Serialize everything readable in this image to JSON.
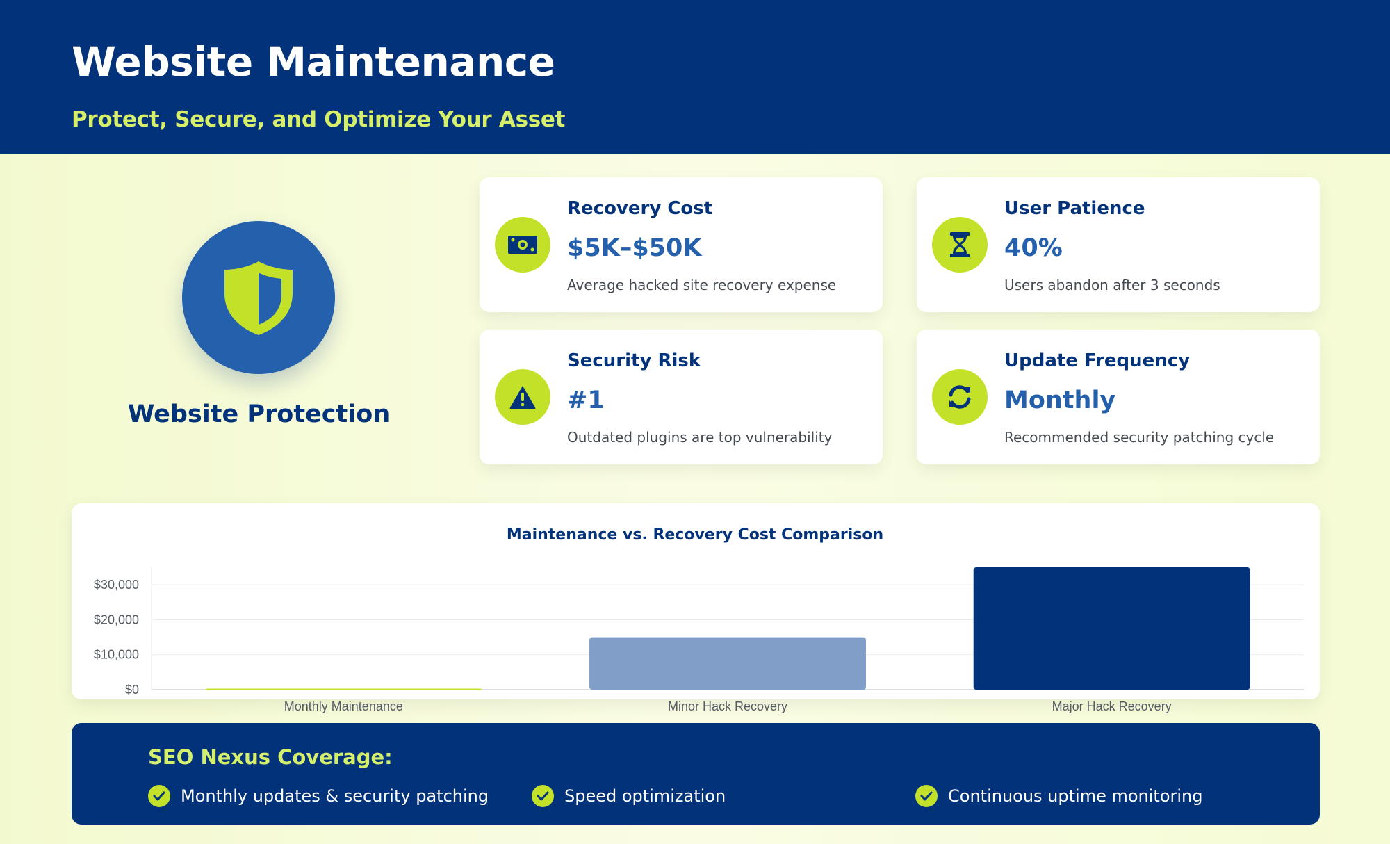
{
  "header": {
    "title": "Website Maintenance",
    "subtitle": "Protect, Secure, and Optimize Your Asset"
  },
  "hero": {
    "icon": "shield-icon",
    "title": "Website Protection"
  },
  "stats": [
    {
      "icon": "money-icon",
      "label": "Recovery Cost",
      "value": "$5K–$50K",
      "description": "Average hacked site recovery expense"
    },
    {
      "icon": "hourglass-icon",
      "label": "User Patience",
      "value": "40%",
      "description": "Users abandon after 3 seconds"
    },
    {
      "icon": "warning-icon",
      "label": "Security Risk",
      "value": "#1",
      "description": "Outdated plugins are top vulnerability"
    },
    {
      "icon": "refresh-icon",
      "label": "Update Frequency",
      "value": "Monthly",
      "description": "Recommended security patching cycle"
    }
  ],
  "chart_data": {
    "type": "bar",
    "title": "Maintenance vs. Recovery Cost Comparison",
    "categories": [
      "Monthly Maintenance",
      "Minor Hack Recovery",
      "Major Hack Recovery"
    ],
    "values": [
      300,
      15000,
      35000
    ],
    "bar_colors": [
      "#c4e12a",
      "#809ec8",
      "#02337a"
    ],
    "y_ticks": [
      0,
      10000,
      20000,
      30000
    ],
    "y_tick_labels": [
      "$0",
      "$10,000",
      "$20,000",
      "$30,000"
    ],
    "ylim": [
      0,
      35000
    ],
    "grid": true,
    "legend": "none",
    "xlabel": "",
    "ylabel": ""
  },
  "coverage": {
    "title": "SEO Nexus Coverage:",
    "items": [
      {
        "icon": "check-icon",
        "text": "Monthly updates & security patching"
      },
      {
        "icon": "check-icon",
        "text": "Speed optimization"
      },
      {
        "icon": "check-icon",
        "text": "Continuous uptime monitoring"
      }
    ]
  },
  "colors": {
    "navy": "#02337a",
    "blue": "#2560ad",
    "lime": "#c4e12a",
    "subtitle_lime": "#d6ef6a",
    "light_blue_bar": "#809ec8"
  }
}
